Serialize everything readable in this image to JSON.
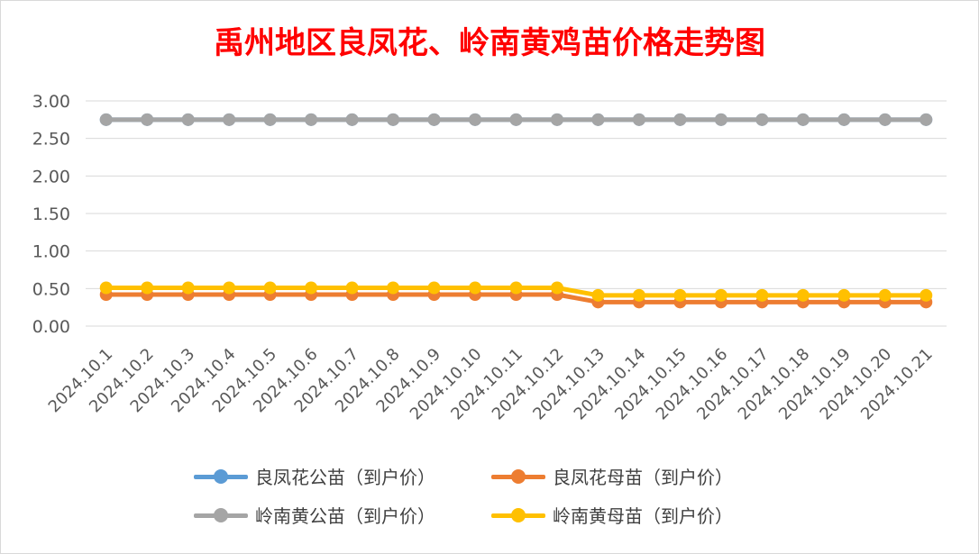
{
  "chart_data": {
    "type": "line",
    "title": "禹州地区良凤花、岭南黄鸡苗价格走势图",
    "categories": [
      "2024.10.1",
      "2024.10.2",
      "2024.10.3",
      "2024.10.4",
      "2024.10.5",
      "2024.10.6",
      "2024.10.7",
      "2024.10.8",
      "2024.10.9",
      "2024.10.10",
      "2024.10.11",
      "2024.10.12",
      "2024.10.13",
      "2024.10.14",
      "2024.10.15",
      "2024.10.16",
      "2024.10.17",
      "2024.10.18",
      "2024.10.19",
      "2024.10.20",
      "2024.10.21"
    ],
    "yticks": [
      "0.00",
      "0.50",
      "1.00",
      "1.50",
      "2.00",
      "2.50",
      "3.00"
    ],
    "ylim": [
      0,
      3
    ],
    "grid": true,
    "legend_position": "bottom",
    "series": [
      {
        "name": "良凤花公苗（到户价）",
        "color": "#5b9bd5",
        "values": [
          2.75,
          2.75,
          2.75,
          2.75,
          2.75,
          2.75,
          2.75,
          2.75,
          2.75,
          2.75,
          2.75,
          2.75,
          2.75,
          2.75,
          2.75,
          2.75,
          2.75,
          2.75,
          2.75,
          2.75,
          2.75
        ]
      },
      {
        "name": "良凤花母苗（到户价）",
        "color": "#ed7d31",
        "values": [
          0.42,
          0.42,
          0.42,
          0.42,
          0.42,
          0.42,
          0.42,
          0.42,
          0.42,
          0.42,
          0.42,
          0.42,
          0.32,
          0.32,
          0.32,
          0.32,
          0.32,
          0.32,
          0.32,
          0.32,
          0.32
        ]
      },
      {
        "name": "岭南黄公苗（到户价）",
        "color": "#a5a5a5",
        "values": [
          2.75,
          2.75,
          2.75,
          2.75,
          2.75,
          2.75,
          2.75,
          2.75,
          2.75,
          2.75,
          2.75,
          2.75,
          2.75,
          2.75,
          2.75,
          2.75,
          2.75,
          2.75,
          2.75,
          2.75,
          2.75
        ]
      },
      {
        "name": "岭南黄母苗（到户价）",
        "color": "#ffc000",
        "values": [
          0.51,
          0.51,
          0.51,
          0.51,
          0.51,
          0.51,
          0.51,
          0.51,
          0.51,
          0.51,
          0.51,
          0.51,
          0.41,
          0.41,
          0.41,
          0.41,
          0.41,
          0.41,
          0.41,
          0.41,
          0.41
        ]
      }
    ]
  }
}
